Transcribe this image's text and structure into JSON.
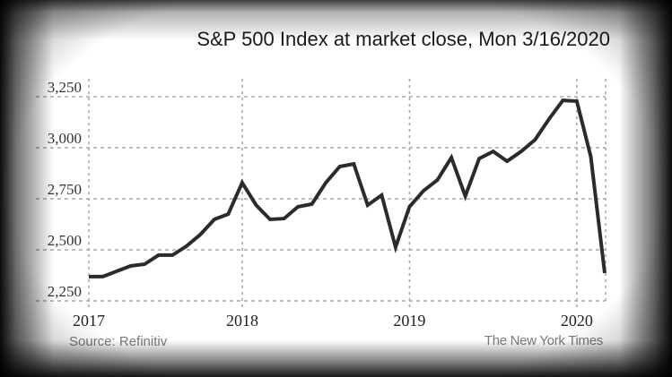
{
  "chart_data": {
    "type": "line",
    "title": "S&P 500 Index at market close, Mon 3/16/2020",
    "xlabel": "",
    "ylabel": "",
    "ylim": [
      2250,
      3250
    ],
    "grid": true,
    "yticks": [
      2250,
      2500,
      2750,
      3000,
      3250
    ],
    "ytick_labels": [
      "2,250",
      "2,500",
      "2,750",
      "3,000",
      "3,250"
    ],
    "xticks": [
      {
        "label": "2017",
        "index": 0
      },
      {
        "label": "2018",
        "index": 11
      },
      {
        "label": "2019",
        "index": 23
      },
      {
        "label": "2020",
        "index": 35
      }
    ],
    "series": [
      {
        "name": "S&P 500",
        "color": "#2b2b2b",
        "values": [
          2369,
          2369,
          2395,
          2421,
          2430,
          2474,
          2474,
          2518,
          2575,
          2649,
          2675,
          2829,
          2719,
          2649,
          2653,
          2711,
          2724,
          2829,
          2908,
          2921,
          2719,
          2768,
          2513,
          2711,
          2789,
          2842,
          2952,
          2763,
          2947,
          2982,
          2934,
          2982,
          3039,
          3140,
          3232,
          3228,
          2956,
          2386
        ]
      }
    ],
    "source": "Source: Refinitiv",
    "credit": "The New York Times"
  }
}
